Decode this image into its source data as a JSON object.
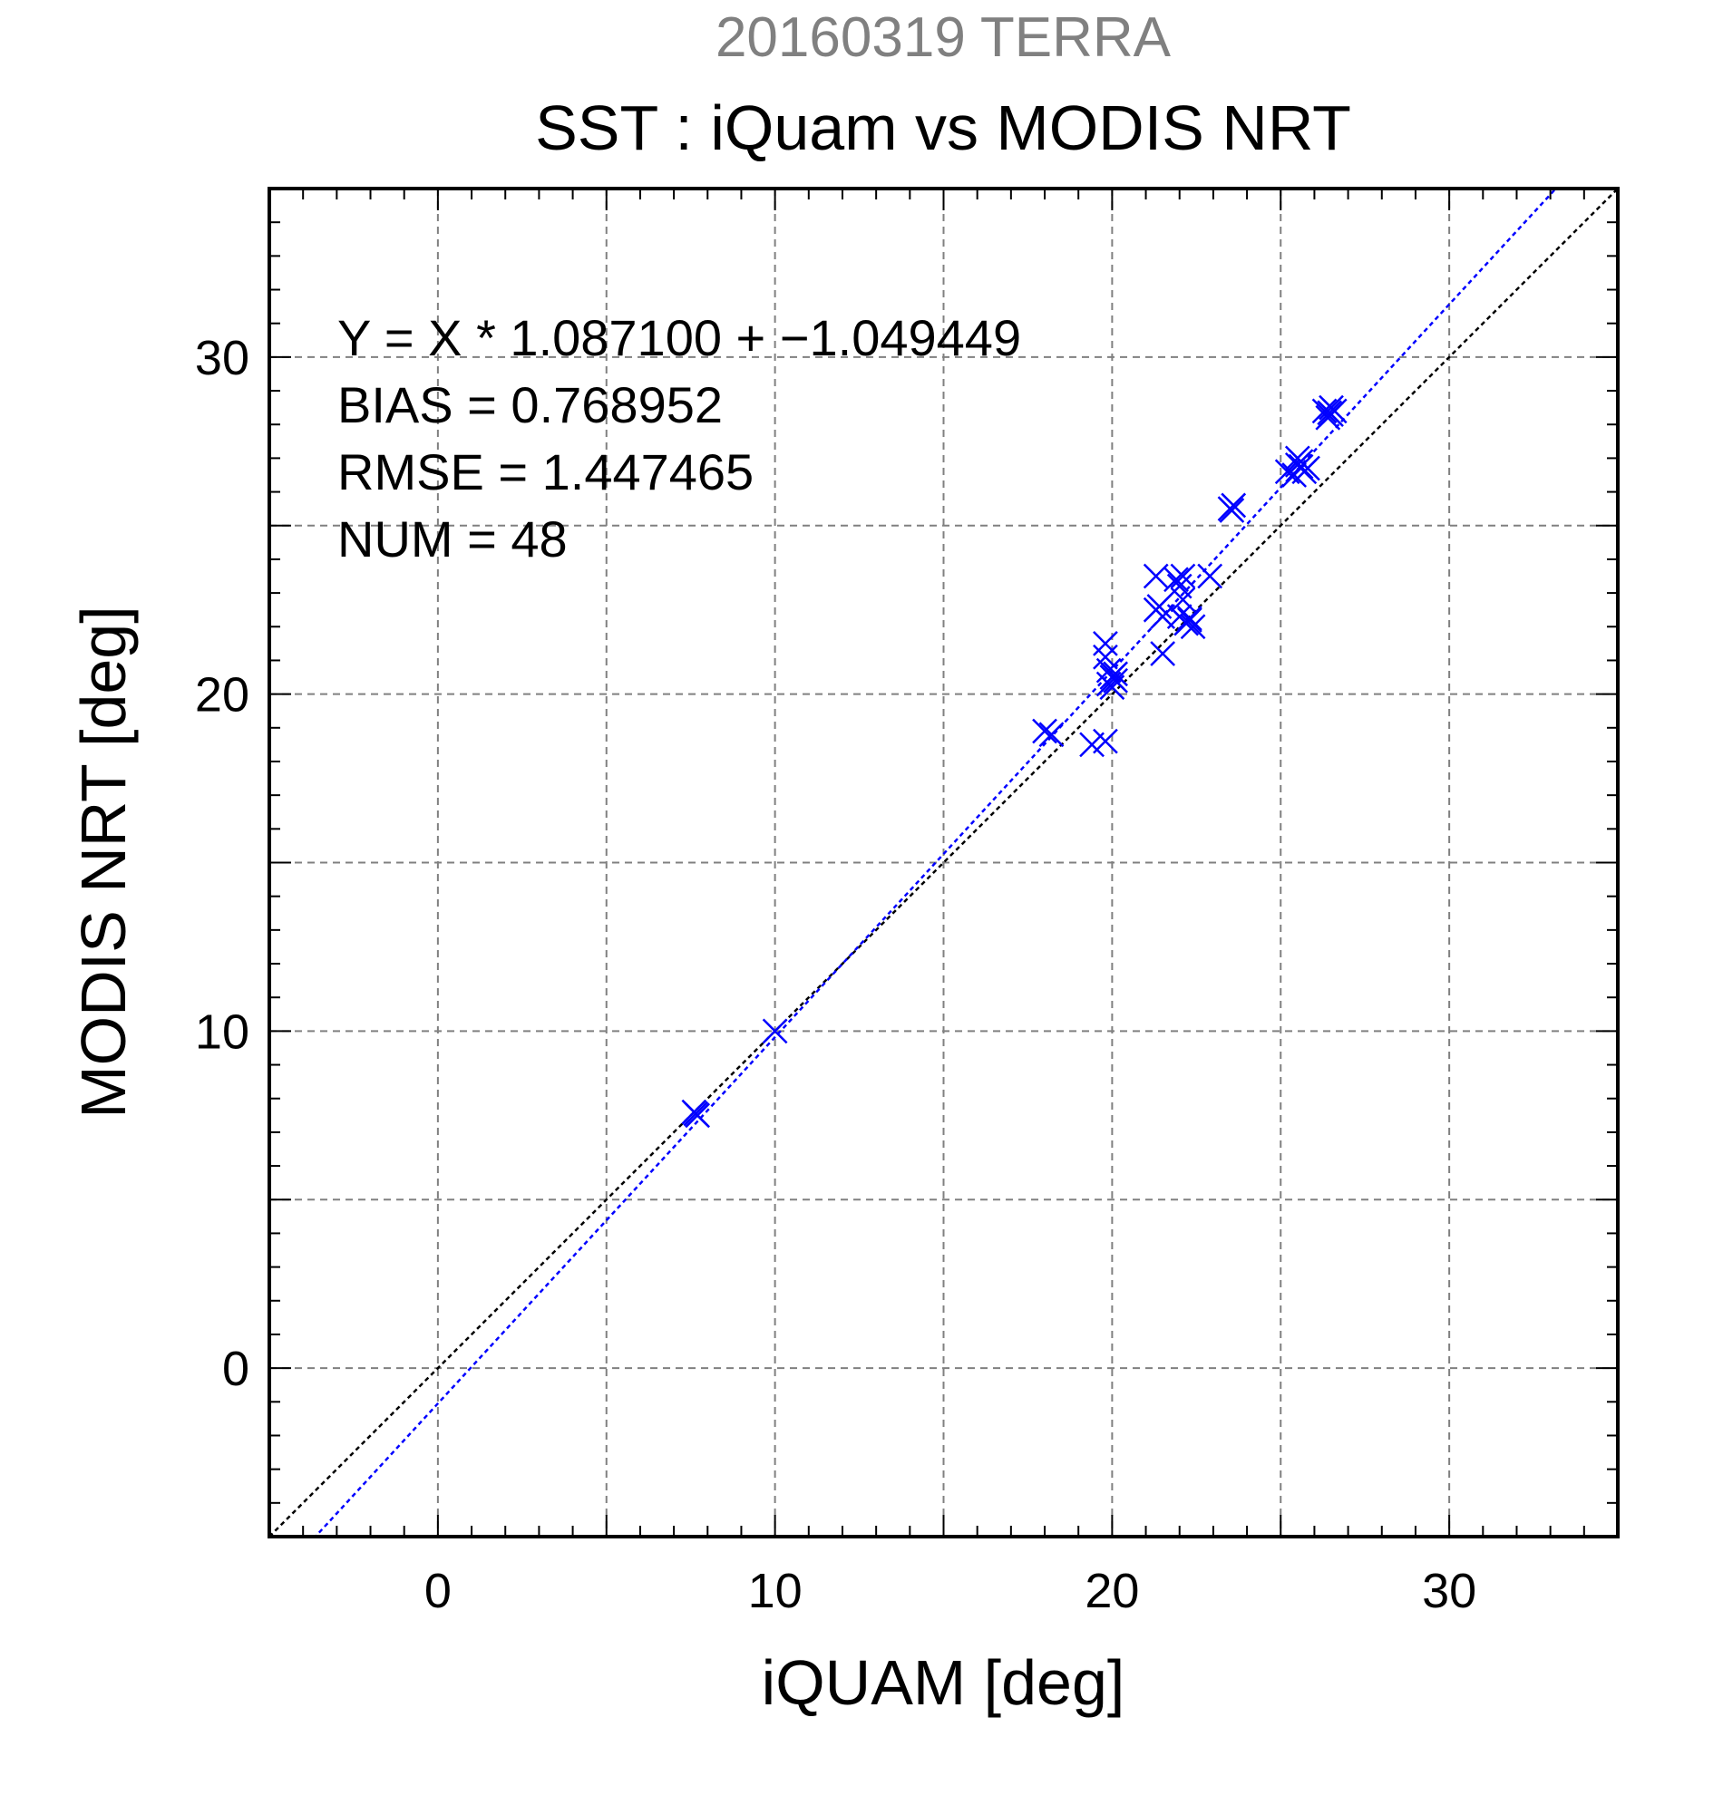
{
  "chart_data": {
    "type": "scatter",
    "title": "20160319 TERRA",
    "subtitle": "SST : iQuam vs MODIS NRT",
    "xlabel": "iQUAM [deg]",
    "ylabel": "MODIS NRT [deg]",
    "xlim": [
      -5,
      35
    ],
    "ylim": [
      -5,
      35
    ],
    "xticks": [
      0,
      10,
      20,
      30
    ],
    "yticks": [
      0,
      10,
      20,
      30
    ],
    "grid": true,
    "annotations": [
      "Y = X * 1.087100 + −1.049449",
      "BIAS = 0.768952",
      "RMSE = 1.447465",
      "NUM = 48"
    ],
    "fit_line": {
      "slope": 1.0871,
      "intercept": -1.049449
    },
    "identity_line": {
      "slope": 1,
      "intercept": 0
    },
    "colors": {
      "points": "#0000ff",
      "fit": "#0000ff",
      "identity": "#000000",
      "title": "#808080",
      "grid": "#808080"
    },
    "points": [
      {
        "x": 7.6,
        "y": 7.6
      },
      {
        "x": 7.7,
        "y": 7.5
      },
      {
        "x": 7.65,
        "y": 7.55
      },
      {
        "x": 10.0,
        "y": 10.0
      },
      {
        "x": 18.0,
        "y": 18.9
      },
      {
        "x": 18.2,
        "y": 18.8
      },
      {
        "x": 19.4,
        "y": 18.5
      },
      {
        "x": 19.8,
        "y": 18.6
      },
      {
        "x": 19.8,
        "y": 21.5
      },
      {
        "x": 19.8,
        "y": 21.1
      },
      {
        "x": 19.9,
        "y": 20.7
      },
      {
        "x": 20.0,
        "y": 20.5
      },
      {
        "x": 19.9,
        "y": 20.3
      },
      {
        "x": 20.1,
        "y": 20.6
      },
      {
        "x": 20.0,
        "y": 20.2
      },
      {
        "x": 20.1,
        "y": 20.4
      },
      {
        "x": 21.3,
        "y": 23.5
      },
      {
        "x": 21.3,
        "y": 22.5
      },
      {
        "x": 21.4,
        "y": 22.6
      },
      {
        "x": 21.5,
        "y": 22.3
      },
      {
        "x": 21.5,
        "y": 21.2
      },
      {
        "x": 21.9,
        "y": 23.4
      },
      {
        "x": 22.0,
        "y": 23.2
      },
      {
        "x": 22.1,
        "y": 23.5
      },
      {
        "x": 22.1,
        "y": 22.8
      },
      {
        "x": 22.0,
        "y": 22.3
      },
      {
        "x": 22.2,
        "y": 22.1
      },
      {
        "x": 22.3,
        "y": 22.2
      },
      {
        "x": 22.4,
        "y": 22.0
      },
      {
        "x": 22.3,
        "y": 22.25
      },
      {
        "x": 22.9,
        "y": 23.5
      },
      {
        "x": 23.5,
        "y": 25.5
      },
      {
        "x": 23.6,
        "y": 25.6
      },
      {
        "x": 23.55,
        "y": 25.45
      },
      {
        "x": 25.2,
        "y": 26.6
      },
      {
        "x": 25.4,
        "y": 26.5
      },
      {
        "x": 25.5,
        "y": 26.8
      },
      {
        "x": 25.5,
        "y": 27.0
      },
      {
        "x": 25.6,
        "y": 26.9
      },
      {
        "x": 25.7,
        "y": 26.6
      },
      {
        "x": 25.8,
        "y": 26.7
      },
      {
        "x": 25.6,
        "y": 26.75
      },
      {
        "x": 26.3,
        "y": 28.4
      },
      {
        "x": 26.4,
        "y": 28.2
      },
      {
        "x": 26.5,
        "y": 28.3
      },
      {
        "x": 26.5,
        "y": 28.5
      },
      {
        "x": 26.6,
        "y": 28.4
      },
      {
        "x": 26.45,
        "y": 28.35
      }
    ]
  }
}
